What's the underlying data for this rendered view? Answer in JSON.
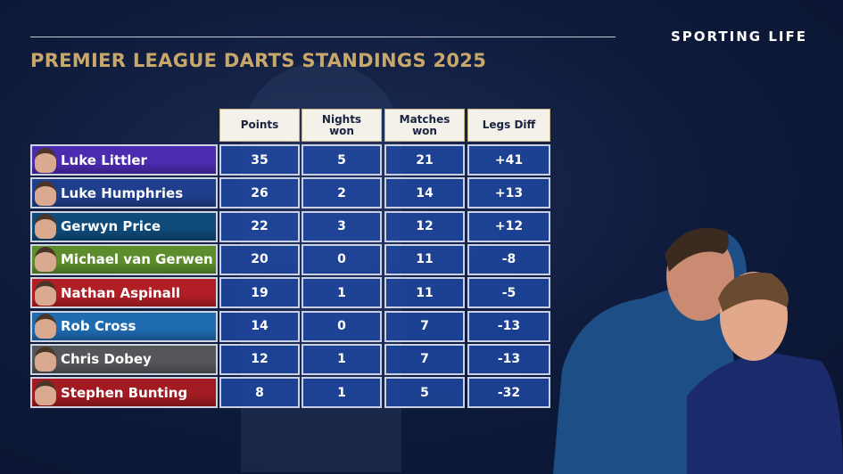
{
  "brand": "SPORTING LIFE",
  "title": "PREMIER LEAGUE DARTS STANDINGS 2025",
  "headers": [
    "Points",
    "Nights won",
    "Matches won",
    "Legs Diff"
  ],
  "rows": [
    {
      "name": "Luke Littler",
      "points": "35",
      "nights": "5",
      "matches": "21",
      "legs": "+41",
      "color": "#4b2bb0"
    },
    {
      "name": "Luke Humphries",
      "points": "26",
      "nights": "2",
      "matches": "14",
      "legs": "+13",
      "color": "#1f3f8c"
    },
    {
      "name": "Gerwyn Price",
      "points": "22",
      "nights": "3",
      "matches": "12",
      "legs": "+12",
      "color": "#0e4a7a"
    },
    {
      "name": "Michael van Gerwen",
      "points": "20",
      "nights": "0",
      "matches": "11",
      "legs": "-8",
      "color": "#5c8c2c"
    },
    {
      "name": "Nathan Aspinall",
      "points": "19",
      "nights": "1",
      "matches": "11",
      "legs": "-5",
      "color": "#b21e26"
    },
    {
      "name": "Rob Cross",
      "points": "14",
      "nights": "0",
      "matches": "7",
      "legs": "-13",
      "color": "#1e6bb2"
    },
    {
      "name": "Chris Dobey",
      "points": "12",
      "nights": "1",
      "matches": "7",
      "legs": "-13",
      "color": "#555659"
    },
    {
      "name": "Stephen Bunting",
      "points": "8",
      "nights": "1",
      "matches": "5",
      "legs": "-32",
      "color": "#a21b22"
    }
  ]
}
